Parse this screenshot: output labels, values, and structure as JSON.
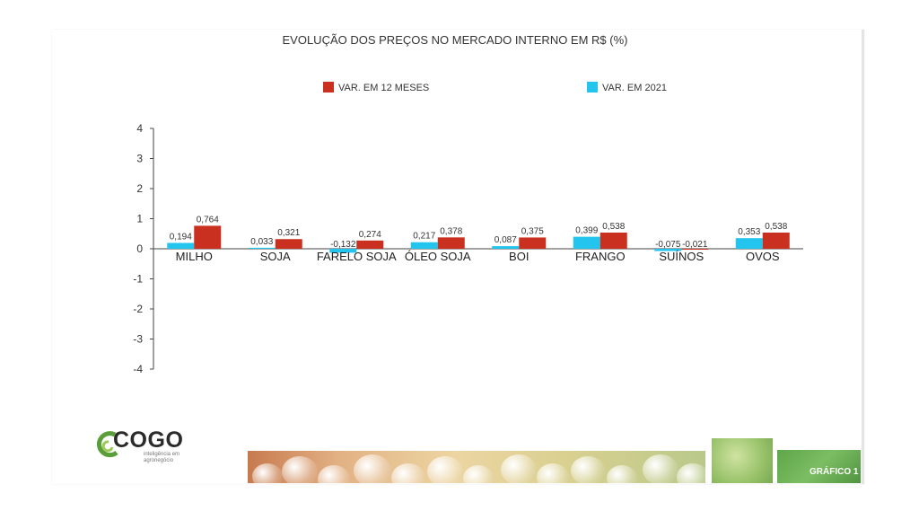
{
  "chart_data": {
    "type": "bar",
    "title": "EVOLUÇÃO DOS PREÇOS NO MERCADO INTERNO EM R$ (%)",
    "categories": [
      "MILHO",
      "SOJA",
      "FARELO SOJA",
      "ÓLEO SOJA",
      "BOI",
      "FRANGO",
      "SUÍNOS",
      "OVOS"
    ],
    "series": [
      {
        "name": "VAR. EM 2021",
        "color": "#23c4ee",
        "values": [
          0.194,
          0.033,
          -0.132,
          0.217,
          0.087,
          0.399,
          -0.075,
          0.353
        ],
        "labels": [
          "0,194",
          "0,033",
          "-0,132",
          "0,217",
          "0,087",
          "0,399",
          "-0,075",
          "0,353"
        ]
      },
      {
        "name": "VAR. EM 12 MESES",
        "color": "#c9301f",
        "values": [
          0.764,
          0.321,
          0.274,
          0.378,
          0.375,
          0.538,
          -0.021,
          0.538
        ],
        "labels": [
          "0,764",
          "0,321",
          "0,274",
          "0,378",
          "0,375",
          "0,538",
          "-0,021",
          "0,538"
        ]
      }
    ],
    "ylim": [
      -4,
      4
    ],
    "yticks": [
      4,
      3,
      2,
      1,
      0,
      -1,
      -2,
      -3,
      -4
    ],
    "legend_position": "top",
    "legend_order": [
      "VAR. EM 12 MESES",
      "VAR. EM 2021"
    ],
    "grid": false
  },
  "footer": {
    "logo_text": "COGO",
    "logo_subtitle": "inteligência em agronegócio",
    "badge": "GRÁFICO 1"
  }
}
